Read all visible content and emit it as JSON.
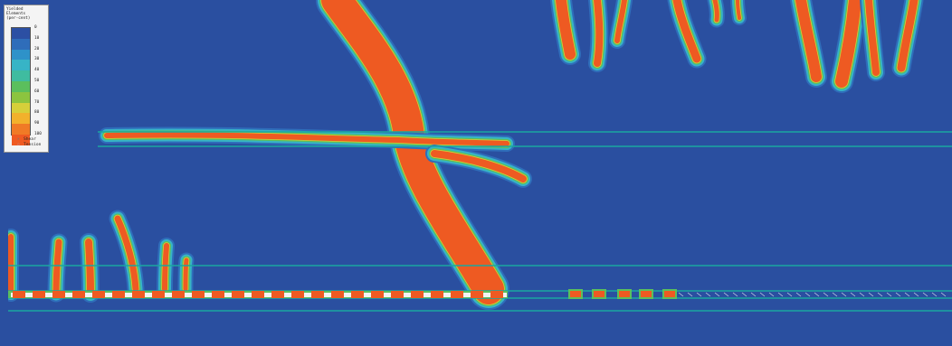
{
  "legend": {
    "title_lines": [
      "Yielded",
      "Elements",
      "(per-cent)"
    ],
    "scale_values": [
      "0",
      "10",
      "20",
      "30",
      "40",
      "50",
      "60",
      "70",
      "80",
      "90",
      "100"
    ],
    "colors": [
      "#2c4fa3",
      "#2f6dba",
      "#2e92c9",
      "#37b4c6",
      "#3fbca0",
      "#5bbf5d",
      "#8cc43f",
      "#d6cf3a",
      "#f2b12c",
      "#f07a26",
      "#ef5a22"
    ],
    "symbols": [
      {
        "label": "Shear",
        "glyph": "×",
        "color": "#777777"
      },
      {
        "label": "Tension",
        "glyph": "o",
        "color": "#c98080"
      }
    ]
  },
  "colors": {
    "background": "#2a4fa0",
    "yield_core": "#ee5a22",
    "halo_green": "#5bbf5d",
    "halo_cyan": "#37b4c6",
    "joint_line": "#1aa7a0"
  }
}
